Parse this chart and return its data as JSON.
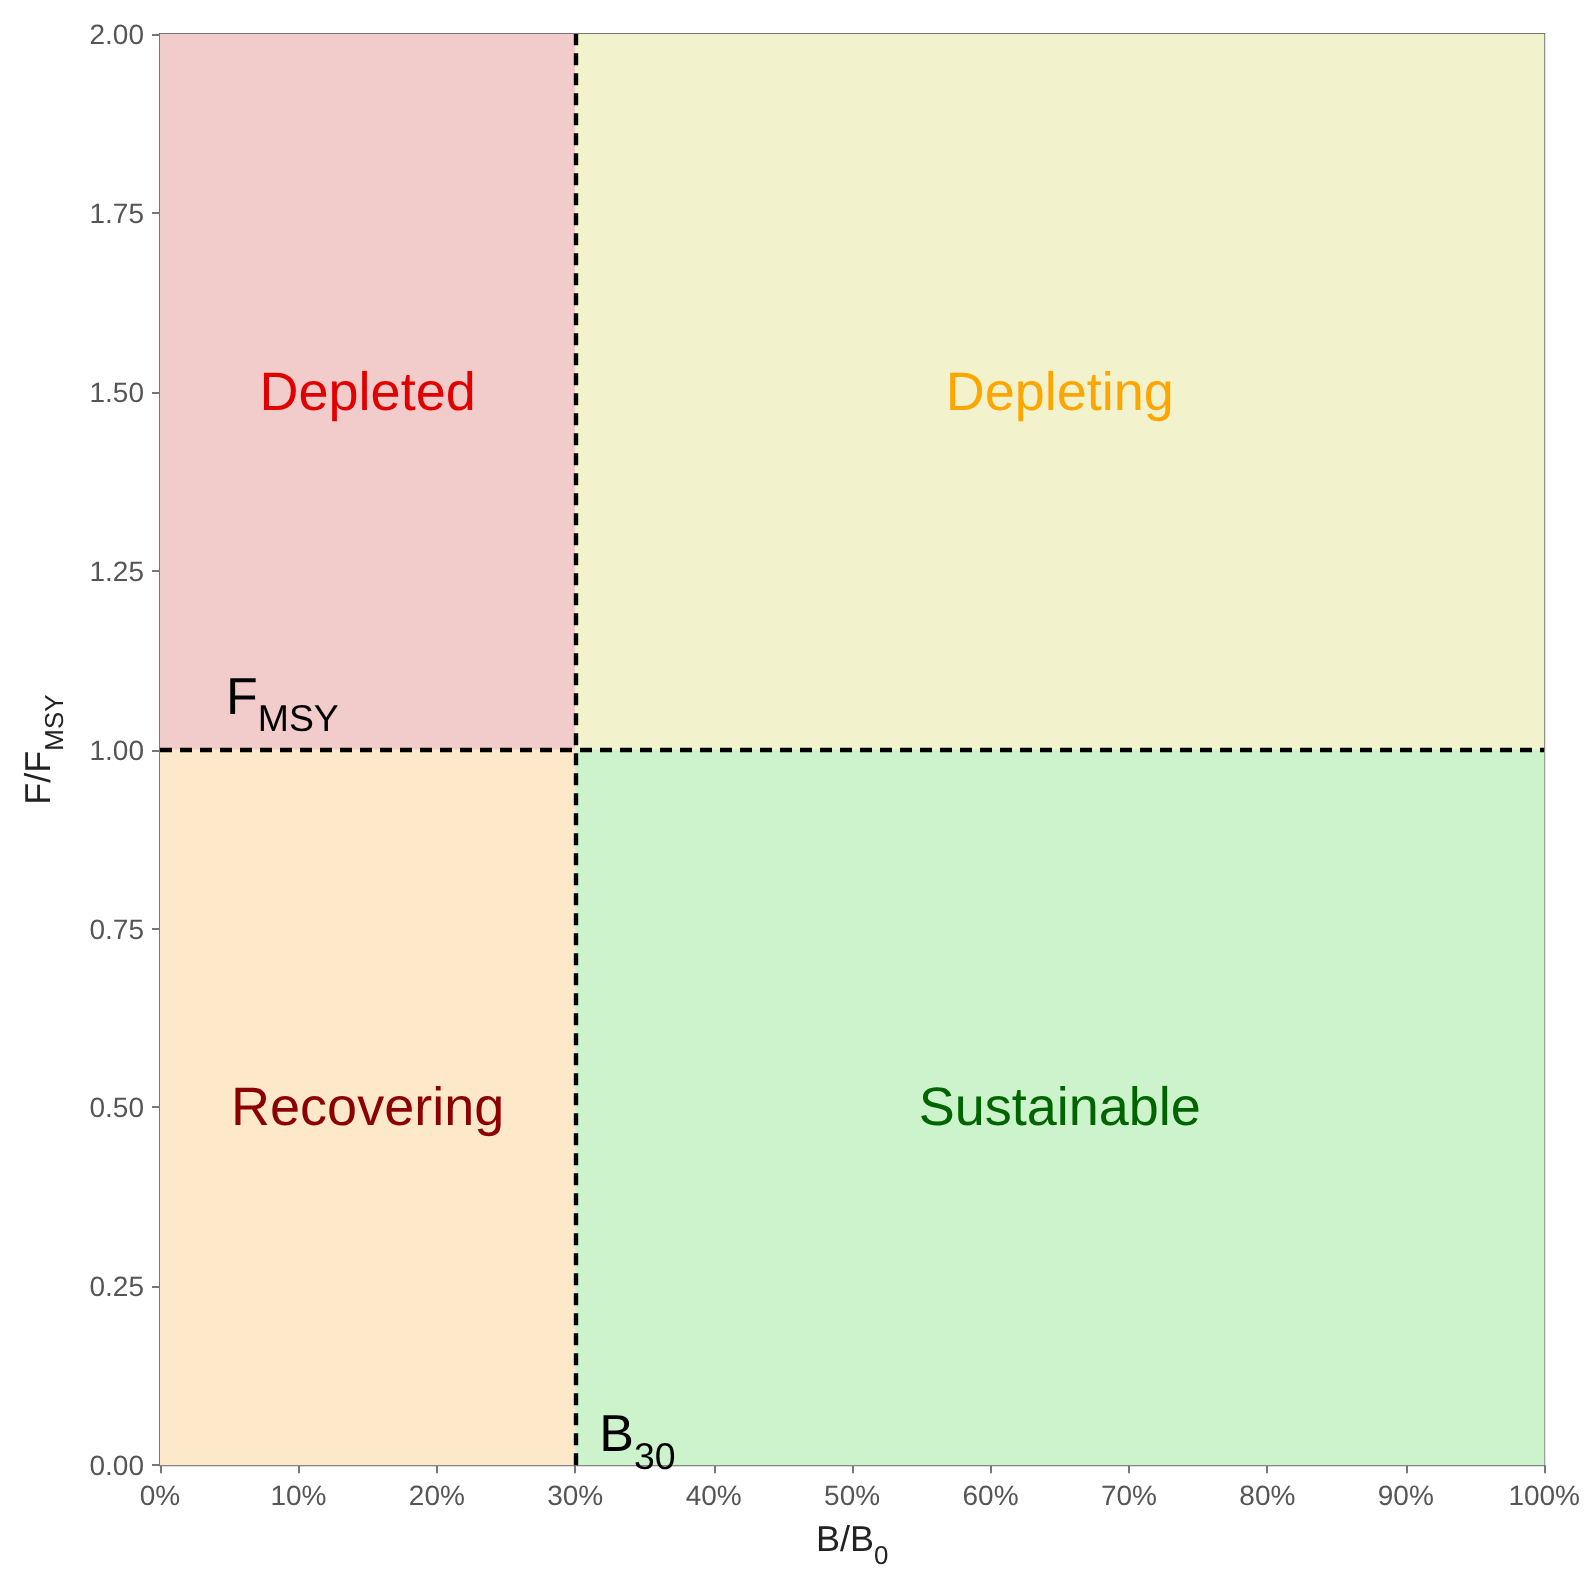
{
  "chart_data": {
    "type": "area",
    "series": [
      {
        "name": "Depleted",
        "color": "#f2cbcb",
        "x": [
          0,
          30
        ],
        "values": [
          2,
          2
        ]
      },
      {
        "name": "Recovering",
        "color": "#fde9c9",
        "x": [
          0,
          30
        ],
        "values": [
          1,
          1
        ]
      },
      {
        "name": "Depleting",
        "color": "#f2f3cc",
        "x": [
          30,
          100
        ],
        "values": [
          2,
          2
        ]
      },
      {
        "name": "Sustainable",
        "color": "#ccf3cc",
        "x": [
          30,
          100
        ],
        "values": [
          1,
          1
        ]
      }
    ],
    "xlabel": "B/B$_{0}$",
    "ylabel": "F/F$_{MSY}$",
    "xlim": [
      0,
      100
    ],
    "ylim": [
      0,
      2
    ],
    "xticks": [
      {
        "value": 0,
        "label": "0%"
      },
      {
        "value": 10,
        "label": "10%"
      },
      {
        "value": 20,
        "label": "20%"
      },
      {
        "value": 30,
        "label": "30%"
      },
      {
        "value": 40,
        "label": "40%"
      },
      {
        "value": 50,
        "label": "50%"
      },
      {
        "value": 60,
        "label": "60%"
      },
      {
        "value": 70,
        "label": "70%"
      },
      {
        "value": 80,
        "label": "80%"
      },
      {
        "value": 90,
        "label": "90%"
      },
      {
        "value": 100,
        "label": "100%"
      }
    ],
    "yticks": [
      {
        "value": 0,
        "label": "0.00"
      },
      {
        "value": 0.25,
        "label": "0.25"
      },
      {
        "value": 0.5,
        "label": "0.50"
      },
      {
        "value": 0.75,
        "label": "0.75"
      },
      {
        "value": 1,
        "label": "1.00"
      },
      {
        "value": 1.25,
        "label": "1.25"
      },
      {
        "value": 1.5,
        "label": "1.50"
      },
      {
        "value": 1.75,
        "label": "1.75"
      },
      {
        "value": 2,
        "label": "2.00"
      }
    ],
    "ref_lines": [
      {
        "axis": "x",
        "value": 30,
        "label": "B$_{30}$",
        "color": "#000000",
        "line_style": "dashed"
      },
      {
        "axis": "y",
        "value": 1,
        "label": "F$_{MSY}$",
        "color": "#000000",
        "line_style": "dashed"
      }
    ]
  }
}
